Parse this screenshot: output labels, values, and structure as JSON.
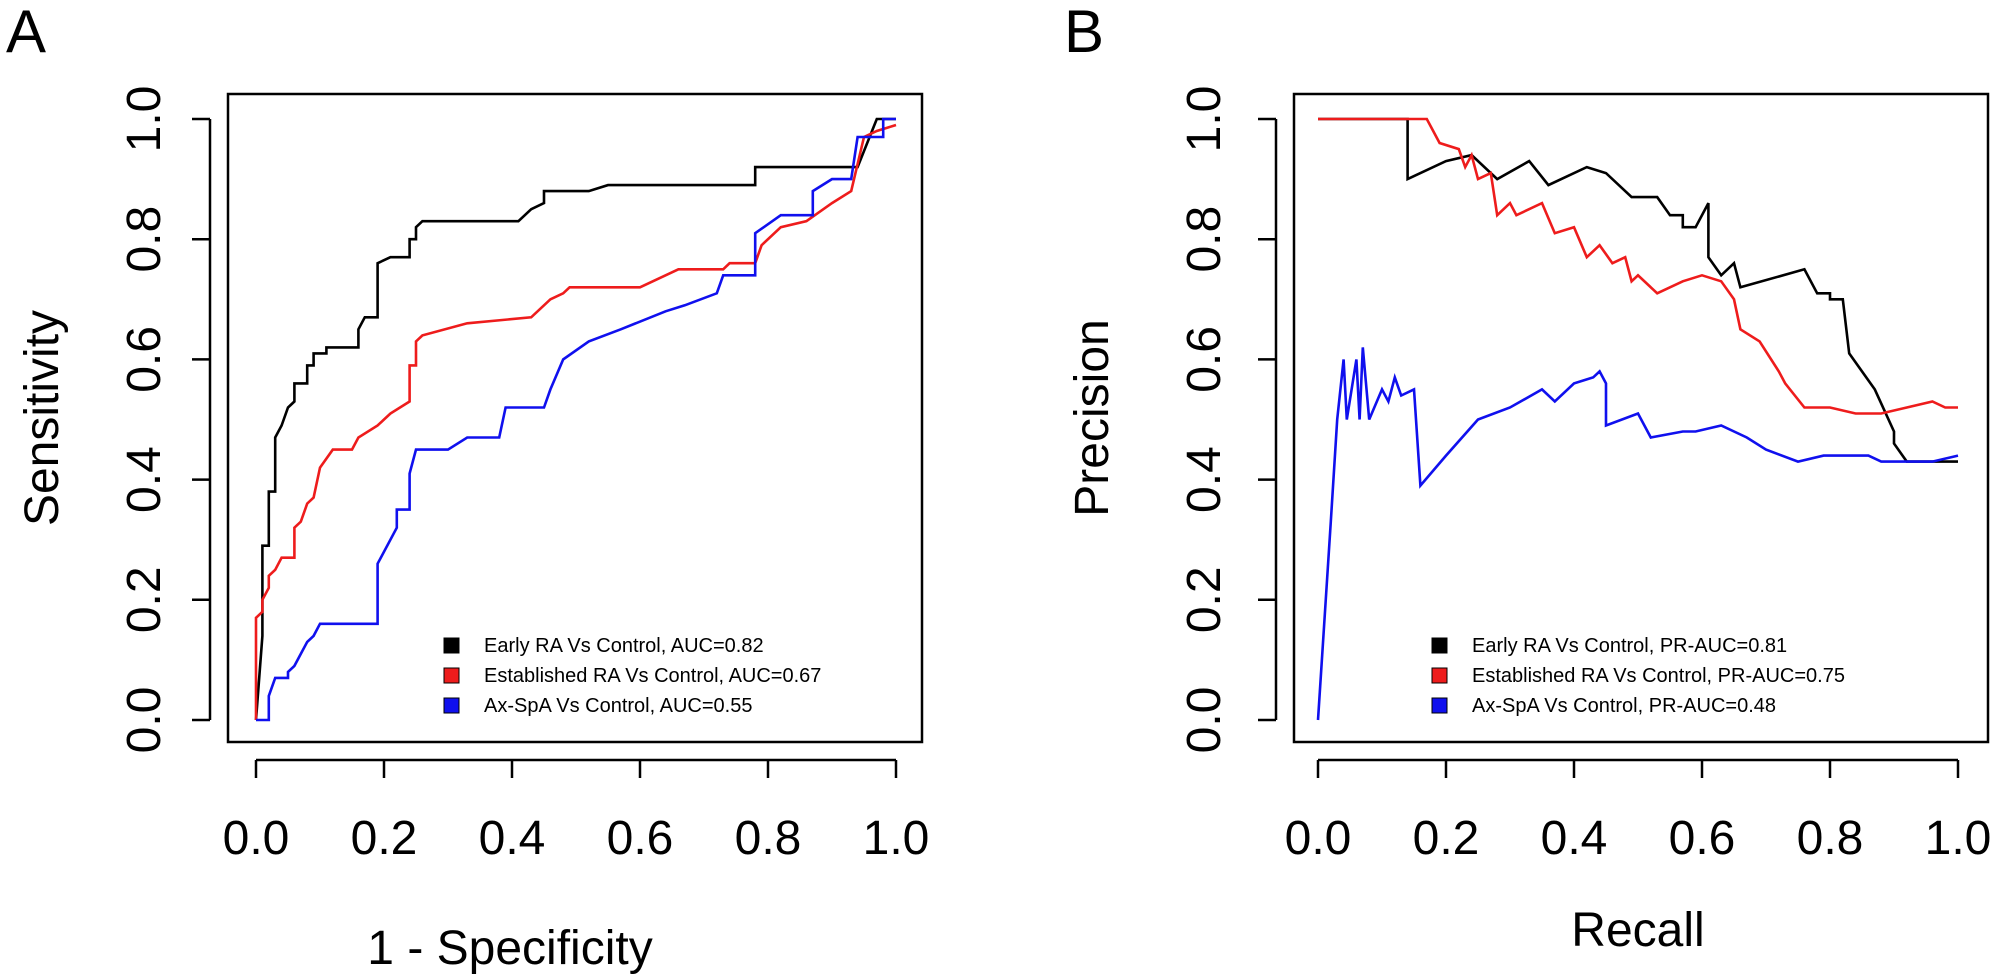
{
  "chart_data": [
    {
      "panel": "A",
      "type": "line",
      "xlabel": "1 - Specificity",
      "ylabel": "Sensitivity",
      "xlim": [
        0,
        1
      ],
      "ylim": [
        0,
        1
      ],
      "x_ticks": [
        "0.0",
        "0.2",
        "0.4",
        "0.6",
        "0.8",
        "1.0"
      ],
      "y_ticks": [
        "0.0",
        "0.2",
        "0.4",
        "0.6",
        "0.8",
        "1.0"
      ],
      "grid": false,
      "legend_position": "bottom-right",
      "series": [
        {
          "name": "Early RA Vs Control, AUC=0.82",
          "color": "#000000",
          "points": [
            [
              0.0,
              0.0
            ],
            [
              0.01,
              0.14
            ],
            [
              0.01,
              0.29
            ],
            [
              0.02,
              0.29
            ],
            [
              0.02,
              0.38
            ],
            [
              0.03,
              0.38
            ],
            [
              0.03,
              0.47
            ],
            [
              0.04,
              0.49
            ],
            [
              0.05,
              0.52
            ],
            [
              0.06,
              0.53
            ],
            [
              0.06,
              0.56
            ],
            [
              0.08,
              0.56
            ],
            [
              0.08,
              0.59
            ],
            [
              0.09,
              0.59
            ],
            [
              0.09,
              0.61
            ],
            [
              0.11,
              0.61
            ],
            [
              0.11,
              0.62
            ],
            [
              0.16,
              0.62
            ],
            [
              0.16,
              0.65
            ],
            [
              0.17,
              0.67
            ],
            [
              0.19,
              0.67
            ],
            [
              0.19,
              0.76
            ],
            [
              0.21,
              0.77
            ],
            [
              0.22,
              0.77
            ],
            [
              0.24,
              0.77
            ],
            [
              0.24,
              0.8
            ],
            [
              0.25,
              0.8
            ],
            [
              0.25,
              0.82
            ],
            [
              0.26,
              0.83
            ],
            [
              0.41,
              0.83
            ],
            [
              0.43,
              0.85
            ],
            [
              0.45,
              0.86
            ],
            [
              0.45,
              0.88
            ],
            [
              0.52,
              0.88
            ],
            [
              0.55,
              0.89
            ],
            [
              0.78,
              0.89
            ],
            [
              0.78,
              0.92
            ],
            [
              0.94,
              0.92
            ],
            [
              0.97,
              1.0
            ],
            [
              1.0,
              1.0
            ]
          ]
        },
        {
          "name": "Established RA Vs Control, AUC=0.67",
          "color": "#ee1c1c",
          "points": [
            [
              0.0,
              0.0
            ],
            [
              0.0,
              0.17
            ],
            [
              0.01,
              0.18
            ],
            [
              0.01,
              0.2
            ],
            [
              0.02,
              0.22
            ],
            [
              0.02,
              0.24
            ],
            [
              0.03,
              0.25
            ],
            [
              0.04,
              0.27
            ],
            [
              0.06,
              0.27
            ],
            [
              0.06,
              0.32
            ],
            [
              0.07,
              0.33
            ],
            [
              0.08,
              0.36
            ],
            [
              0.09,
              0.37
            ],
            [
              0.1,
              0.42
            ],
            [
              0.12,
              0.45
            ],
            [
              0.15,
              0.45
            ],
            [
              0.16,
              0.47
            ],
            [
              0.19,
              0.49
            ],
            [
              0.21,
              0.51
            ],
            [
              0.24,
              0.53
            ],
            [
              0.24,
              0.59
            ],
            [
              0.25,
              0.59
            ],
            [
              0.25,
              0.63
            ],
            [
              0.26,
              0.64
            ],
            [
              0.33,
              0.66
            ],
            [
              0.43,
              0.67
            ],
            [
              0.46,
              0.7
            ],
            [
              0.48,
              0.71
            ],
            [
              0.49,
              0.72
            ],
            [
              0.6,
              0.72
            ],
            [
              0.66,
              0.75
            ],
            [
              0.73,
              0.75
            ],
            [
              0.74,
              0.76
            ],
            [
              0.78,
              0.76
            ],
            [
              0.79,
              0.79
            ],
            [
              0.82,
              0.82
            ],
            [
              0.86,
              0.83
            ],
            [
              0.9,
              0.86
            ],
            [
              0.93,
              0.88
            ],
            [
              0.95,
              0.97
            ],
            [
              0.97,
              0.98
            ],
            [
              1.0,
              0.99
            ]
          ]
        },
        {
          "name": "Ax-SpA Vs Control, AUC=0.55",
          "color": "#1010ee",
          "points": [
            [
              0.0,
              0.0
            ],
            [
              0.02,
              0.0
            ],
            [
              0.02,
              0.04
            ],
            [
              0.03,
              0.07
            ],
            [
              0.05,
              0.07
            ],
            [
              0.05,
              0.08
            ],
            [
              0.06,
              0.09
            ],
            [
              0.07,
              0.11
            ],
            [
              0.08,
              0.13
            ],
            [
              0.09,
              0.14
            ],
            [
              0.1,
              0.16
            ],
            [
              0.19,
              0.16
            ],
            [
              0.19,
              0.26
            ],
            [
              0.22,
              0.32
            ],
            [
              0.22,
              0.35
            ],
            [
              0.24,
              0.35
            ],
            [
              0.24,
              0.41
            ],
            [
              0.25,
              0.45
            ],
            [
              0.3,
              0.45
            ],
            [
              0.33,
              0.47
            ],
            [
              0.38,
              0.47
            ],
            [
              0.39,
              0.52
            ],
            [
              0.45,
              0.52
            ],
            [
              0.46,
              0.55
            ],
            [
              0.48,
              0.6
            ],
            [
              0.52,
              0.63
            ],
            [
              0.57,
              0.65
            ],
            [
              0.64,
              0.68
            ],
            [
              0.67,
              0.69
            ],
            [
              0.72,
              0.71
            ],
            [
              0.73,
              0.74
            ],
            [
              0.78,
              0.74
            ],
            [
              0.78,
              0.81
            ],
            [
              0.82,
              0.84
            ],
            [
              0.87,
              0.84
            ],
            [
              0.87,
              0.88
            ],
            [
              0.9,
              0.9
            ],
            [
              0.93,
              0.9
            ],
            [
              0.94,
              0.97
            ],
            [
              0.98,
              0.97
            ],
            [
              0.98,
              1.0
            ],
            [
              1.0,
              1.0
            ]
          ]
        }
      ]
    },
    {
      "panel": "B",
      "type": "line",
      "xlabel": "Recall",
      "ylabel": "Precision",
      "xlim": [
        0,
        1
      ],
      "ylim": [
        0,
        1
      ],
      "x_ticks": [
        "0.0",
        "0.2",
        "0.4",
        "0.6",
        "0.8",
        "1.0"
      ],
      "y_ticks": [
        "0.0",
        "0.2",
        "0.4",
        "0.6",
        "0.8",
        "1.0"
      ],
      "grid": false,
      "legend_position": "bottom-right",
      "series": [
        {
          "name": "Early RA Vs Control, PR-AUC=0.81",
          "color": "#000000",
          "points": [
            [
              0.0,
              1.0
            ],
            [
              0.14,
              1.0
            ],
            [
              0.14,
              0.9
            ],
            [
              0.2,
              0.93
            ],
            [
              0.24,
              0.94
            ],
            [
              0.28,
              0.9
            ],
            [
              0.33,
              0.93
            ],
            [
              0.36,
              0.89
            ],
            [
              0.42,
              0.92
            ],
            [
              0.45,
              0.91
            ],
            [
              0.49,
              0.87
            ],
            [
              0.53,
              0.87
            ],
            [
              0.55,
              0.84
            ],
            [
              0.57,
              0.84
            ],
            [
              0.57,
              0.82
            ],
            [
              0.59,
              0.82
            ],
            [
              0.61,
              0.86
            ],
            [
              0.61,
              0.77
            ],
            [
              0.63,
              0.74
            ],
            [
              0.65,
              0.76
            ],
            [
              0.66,
              0.72
            ],
            [
              0.76,
              0.75
            ],
            [
              0.78,
              0.71
            ],
            [
              0.8,
              0.71
            ],
            [
              0.8,
              0.7
            ],
            [
              0.82,
              0.7
            ],
            [
              0.83,
              0.61
            ],
            [
              0.87,
              0.55
            ],
            [
              0.9,
              0.48
            ],
            [
              0.9,
              0.46
            ],
            [
              0.92,
              0.43
            ],
            [
              0.95,
              0.43
            ],
            [
              1.0,
              0.43
            ]
          ]
        },
        {
          "name": "Established RA Vs Control, PR-AUC=0.75",
          "color": "#ee1c1c",
          "points": [
            [
              0.0,
              1.0
            ],
            [
              0.17,
              1.0
            ],
            [
              0.19,
              0.96
            ],
            [
              0.22,
              0.95
            ],
            [
              0.23,
              0.92
            ],
            [
              0.24,
              0.94
            ],
            [
              0.25,
              0.9
            ],
            [
              0.27,
              0.91
            ],
            [
              0.28,
              0.84
            ],
            [
              0.3,
              0.86
            ],
            [
              0.31,
              0.84
            ],
            [
              0.35,
              0.86
            ],
            [
              0.37,
              0.81
            ],
            [
              0.4,
              0.82
            ],
            [
              0.42,
              0.77
            ],
            [
              0.44,
              0.79
            ],
            [
              0.46,
              0.76
            ],
            [
              0.48,
              0.77
            ],
            [
              0.49,
              0.73
            ],
            [
              0.5,
              0.74
            ],
            [
              0.53,
              0.71
            ],
            [
              0.57,
              0.73
            ],
            [
              0.6,
              0.74
            ],
            [
              0.63,
              0.73
            ],
            [
              0.65,
              0.7
            ],
            [
              0.66,
              0.65
            ],
            [
              0.69,
              0.63
            ],
            [
              0.72,
              0.58
            ],
            [
              0.73,
              0.56
            ],
            [
              0.76,
              0.52
            ],
            [
              0.8,
              0.52
            ],
            [
              0.84,
              0.51
            ],
            [
              0.88,
              0.51
            ],
            [
              0.92,
              0.52
            ],
            [
              0.96,
              0.53
            ],
            [
              0.98,
              0.52
            ],
            [
              1.0,
              0.52
            ]
          ]
        },
        {
          "name": "Ax-SpA Vs Control, PR-AUC=0.48",
          "color": "#1010ee",
          "points": [
            [
              0.0,
              0.0
            ],
            [
              0.02,
              0.33
            ],
            [
              0.03,
              0.5
            ],
            [
              0.04,
              0.6
            ],
            [
              0.045,
              0.5
            ],
            [
              0.06,
              0.6
            ],
            [
              0.065,
              0.5
            ],
            [
              0.07,
              0.62
            ],
            [
              0.08,
              0.5
            ],
            [
              0.1,
              0.55
            ],
            [
              0.11,
              0.53
            ],
            [
              0.12,
              0.57
            ],
            [
              0.13,
              0.54
            ],
            [
              0.15,
              0.55
            ],
            [
              0.16,
              0.39
            ],
            [
              0.2,
              0.44
            ],
            [
              0.25,
              0.5
            ],
            [
              0.3,
              0.52
            ],
            [
              0.35,
              0.55
            ],
            [
              0.37,
              0.53
            ],
            [
              0.4,
              0.56
            ],
            [
              0.43,
              0.57
            ],
            [
              0.44,
              0.58
            ],
            [
              0.45,
              0.56
            ],
            [
              0.45,
              0.53
            ],
            [
              0.45,
              0.49
            ],
            [
              0.5,
              0.51
            ],
            [
              0.52,
              0.47
            ],
            [
              0.57,
              0.48
            ],
            [
              0.59,
              0.48
            ],
            [
              0.63,
              0.49
            ],
            [
              0.67,
              0.47
            ],
            [
              0.7,
              0.45
            ],
            [
              0.75,
              0.43
            ],
            [
              0.79,
              0.44
            ],
            [
              0.83,
              0.44
            ],
            [
              0.86,
              0.44
            ],
            [
              0.88,
              0.43
            ],
            [
              0.92,
              0.43
            ],
            [
              0.96,
              0.43
            ],
            [
              1.0,
              0.44
            ]
          ]
        }
      ]
    }
  ]
}
